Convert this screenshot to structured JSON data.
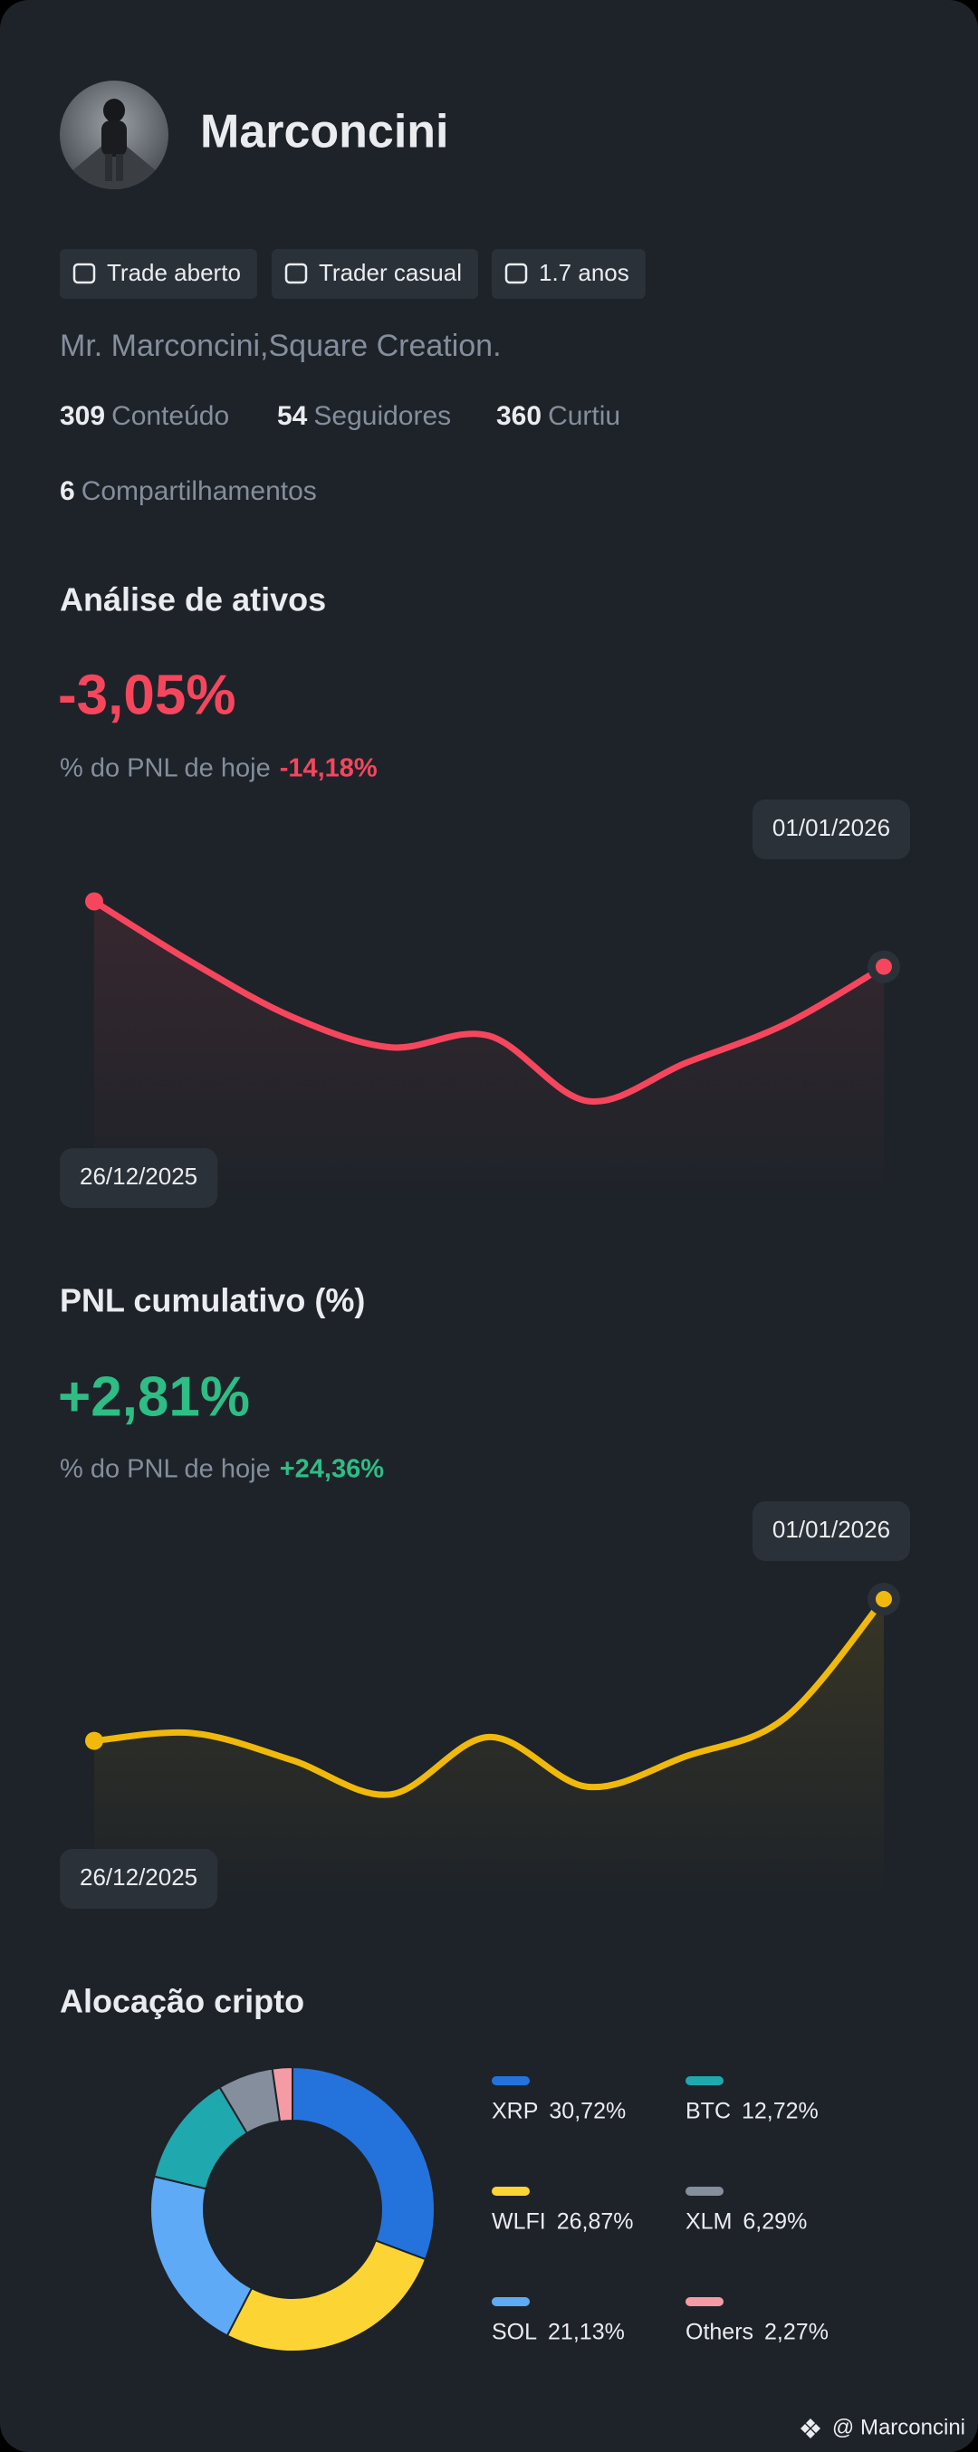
{
  "profile": {
    "name": "Marconcini",
    "tags": [
      "Trade aberto",
      "Trader casual",
      "1.7 anos"
    ],
    "bio": "Mr. Marconcini,Square Creation.",
    "stats": [
      {
        "value": 309,
        "label": "Conteúdo"
      },
      {
        "value": 54,
        "label": "Seguidores"
      },
      {
        "value": 360,
        "label": "Curtiu"
      },
      {
        "value": 6,
        "label": "Compartilhamentos"
      }
    ]
  },
  "asset_analysis": {
    "title": "Análise de ativos",
    "headline": "-3,05%",
    "subtitle": "% do PNL de hoje",
    "today": "-14,18%",
    "chart_data": {
      "type": "line",
      "x": [
        "26/12/2025",
        null,
        null,
        null,
        null,
        null,
        null,
        null,
        "01/01/2026"
      ],
      "values": [
        77,
        61,
        47,
        39,
        42,
        25,
        35,
        45,
        60
      ],
      "color": "#f6465d",
      "ylim": [
        0,
        100
      ]
    }
  },
  "cumulative_pnl": {
    "title": "PNL cumulativo (%)",
    "headline": "+2,81%",
    "subtitle": "% do PNL de hoje",
    "today": "+24,36%",
    "chart_data": {
      "type": "line",
      "x": [
        "26/12/2025",
        null,
        null,
        null,
        null,
        null,
        null,
        null,
        "01/01/2026"
      ],
      "values": [
        41,
        43,
        36,
        27,
        42,
        29,
        37,
        47,
        78
      ],
      "color": "#f0b90b",
      "ylim": [
        0,
        100
      ]
    }
  },
  "allocation": {
    "chart_data": {
      "type": "pie",
      "title": "Alocação cripto",
      "categories": [
        "XRP",
        "WLFI",
        "SOL",
        "BTC",
        "XLM",
        "Others"
      ],
      "values": [
        30.72,
        26.87,
        21.13,
        12.72,
        6.29,
        2.27
      ],
      "value_labels": [
        "30,72%",
        "26,87%",
        "21,13%",
        "12,72%",
        "6,29%",
        "2,27%"
      ],
      "colors": [
        "#2473dc",
        "#fcd535",
        "#5eaaf7",
        "#1fa8ad",
        "#848e9c",
        "#f49ba5"
      ]
    }
  },
  "footer": "@ Marconcini"
}
